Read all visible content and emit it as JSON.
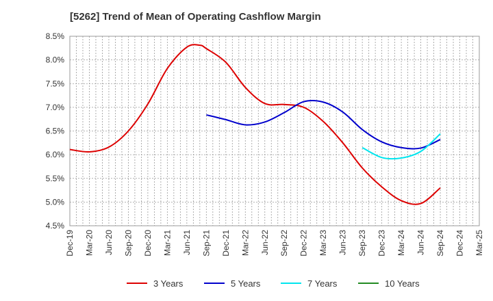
{
  "chart_data": {
    "type": "line",
    "title": "[5262]  Trend of Mean of Operating Cashflow Margin",
    "xlabel": "",
    "ylabel": "",
    "y_unit": "%",
    "ylim": [
      4.5,
      8.5
    ],
    "y_ticks": [
      "4.5%",
      "5.0%",
      "5.5%",
      "6.0%",
      "6.5%",
      "7.0%",
      "7.5%",
      "8.0%",
      "8.5%"
    ],
    "y_tick_values": [
      4.5,
      5.0,
      5.5,
      6.0,
      6.5,
      7.0,
      7.5,
      8.0,
      8.5
    ],
    "x_ticks": [
      "Dec-19",
      "Mar-20",
      "Jun-20",
      "Sep-20",
      "Dec-20",
      "Mar-21",
      "Jun-21",
      "Sep-21",
      "Dec-21",
      "Mar-22",
      "Jun-22",
      "Sep-22",
      "Dec-22",
      "Mar-23",
      "Jun-23",
      "Sep-23",
      "Dec-23",
      "Mar-24",
      "Jun-24",
      "Sep-24",
      "Dec-24",
      "Mar-25"
    ],
    "x_range": [
      "Dec-19",
      "Mar-25"
    ],
    "grid": true,
    "legend_position": "bottom",
    "series": [
      {
        "name": "3 Years",
        "color": "#dd0000",
        "points": [
          [
            "Dec-19",
            6.11
          ],
          [
            "Mar-20",
            6.06
          ],
          [
            "Jun-20",
            6.16
          ],
          [
            "Sep-20",
            6.5
          ],
          [
            "Dec-20",
            7.07
          ],
          [
            "Mar-21",
            7.82
          ],
          [
            "Jun-21",
            8.27
          ],
          [
            "Aug-21",
            8.31
          ],
          [
            "Sep-21",
            8.24
          ],
          [
            "Dec-21",
            7.95
          ],
          [
            "Mar-22",
            7.42
          ],
          [
            "Jun-22",
            7.08
          ],
          [
            "Sep-22",
            7.06
          ],
          [
            "Dec-22",
            7.0
          ],
          [
            "Mar-23",
            6.7
          ],
          [
            "Jun-23",
            6.25
          ],
          [
            "Sep-23",
            5.72
          ],
          [
            "Dec-23",
            5.32
          ],
          [
            "Mar-24",
            5.03
          ],
          [
            "Jun-24",
            4.97
          ],
          [
            "Sep-24",
            5.3
          ]
        ]
      },
      {
        "name": "5 Years",
        "color": "#0000cc",
        "points": [
          [
            "Sep-21",
            6.84
          ],
          [
            "Dec-21",
            6.74
          ],
          [
            "Mar-22",
            6.63
          ],
          [
            "Jun-22",
            6.69
          ],
          [
            "Sep-22",
            6.89
          ],
          [
            "Dec-22",
            7.12
          ],
          [
            "Mar-23",
            7.11
          ],
          [
            "Jun-23",
            6.9
          ],
          [
            "Sep-23",
            6.53
          ],
          [
            "Dec-23",
            6.27
          ],
          [
            "Mar-24",
            6.15
          ],
          [
            "Jun-24",
            6.14
          ],
          [
            "Sep-24",
            6.32
          ]
        ]
      },
      {
        "name": "7 Years",
        "color": "#00e5ee",
        "points": [
          [
            "Sep-23",
            6.15
          ],
          [
            "Dec-23",
            5.94
          ],
          [
            "Mar-24",
            5.93
          ],
          [
            "Jun-24",
            6.07
          ],
          [
            "Sep-24",
            6.44
          ]
        ]
      },
      {
        "name": "10 Years",
        "color": "#228b22",
        "points": []
      }
    ]
  }
}
